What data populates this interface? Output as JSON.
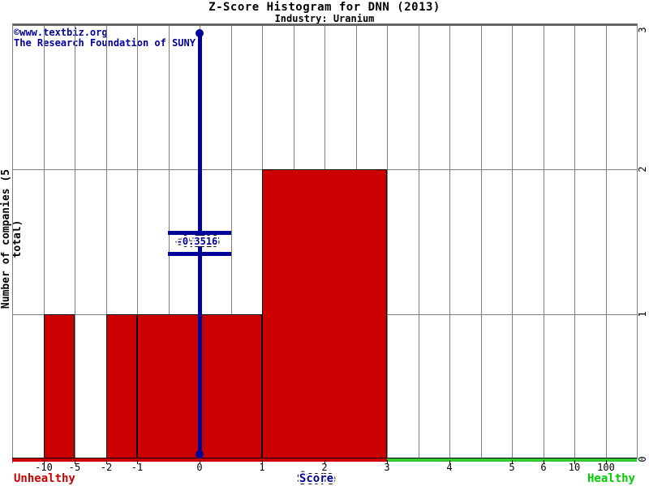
{
  "chart_data": {
    "type": "bar",
    "title": "Z-Score Histogram for DNN (2013)",
    "subtitle": "Industry: Uranium",
    "xlabel": "Score",
    "ylabel": "Number of companies (5 total)",
    "total_companies": 5,
    "ylim": [
      0,
      3
    ],
    "grid": true,
    "x_tick_labels": [
      "-10",
      "-5",
      "-2",
      "-1",
      "0",
      "1",
      "2",
      "3",
      "4",
      "5",
      "6",
      "10",
      "100"
    ],
    "y_tick_labels_right": [
      "0",
      "1",
      "2",
      "3"
    ],
    "bins": [
      {
        "from": "-10",
        "to": "-5",
        "count": 1
      },
      {
        "from": "-2",
        "to": "-1",
        "count": 1
      },
      {
        "from": "-1",
        "to": "1",
        "count": 1
      },
      {
        "from": "1",
        "to": "3",
        "count": 2
      }
    ],
    "marker": {
      "label": "-0.3516",
      "value": -0.3516,
      "at_tick": "0"
    },
    "axis_sentiment": {
      "left": "Unhealthy",
      "right": "Healthy"
    },
    "colors": {
      "bar": "#cc0000",
      "bar_border": "#000000",
      "marker_line": "#000099",
      "grid": "#7f7f7f",
      "plot_border_top": "#666666",
      "axis_left_segment": "#cc0000",
      "axis_right_segment": "#33cc33",
      "unhealthy_text": "#cc0000",
      "healthy_text": "#00cc00",
      "title_text": "#000000",
      "watermark_text": "#000099"
    }
  },
  "watermark": {
    "line1": "©www.textbiz.org",
    "line2": "The Research Foundation of SUNY"
  }
}
